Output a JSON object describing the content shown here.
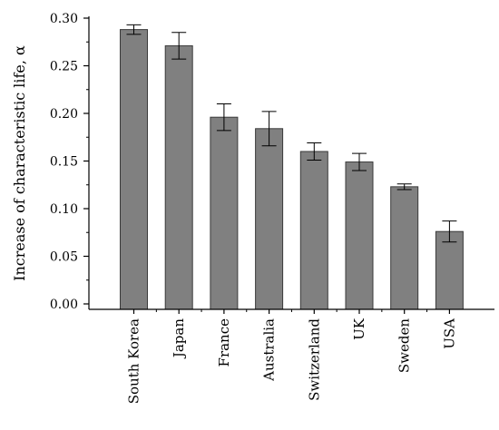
{
  "chart_data": {
    "type": "bar",
    "title": "",
    "xlabel": "",
    "ylabel": "Increase of characteristic life, α",
    "ylim": [
      0,
      0.3
    ],
    "yticks": [
      "0.00",
      "0.05",
      "0.10",
      "0.15",
      "0.20",
      "0.25",
      "0.30"
    ],
    "categories": [
      "South Korea",
      "Japan",
      "France",
      "Australia",
      "Switzerland",
      "UK",
      "Sweden",
      "USA"
    ],
    "values": [
      0.288,
      0.271,
      0.196,
      0.184,
      0.16,
      0.149,
      0.123,
      0.076
    ],
    "errors": [
      0.005,
      0.014,
      0.014,
      0.018,
      0.009,
      0.009,
      0.003,
      0.011
    ],
    "grid": false,
    "colors": {
      "bar": "#808080",
      "bar_stroke": "#3a3a3a",
      "axis": "#000000"
    }
  }
}
